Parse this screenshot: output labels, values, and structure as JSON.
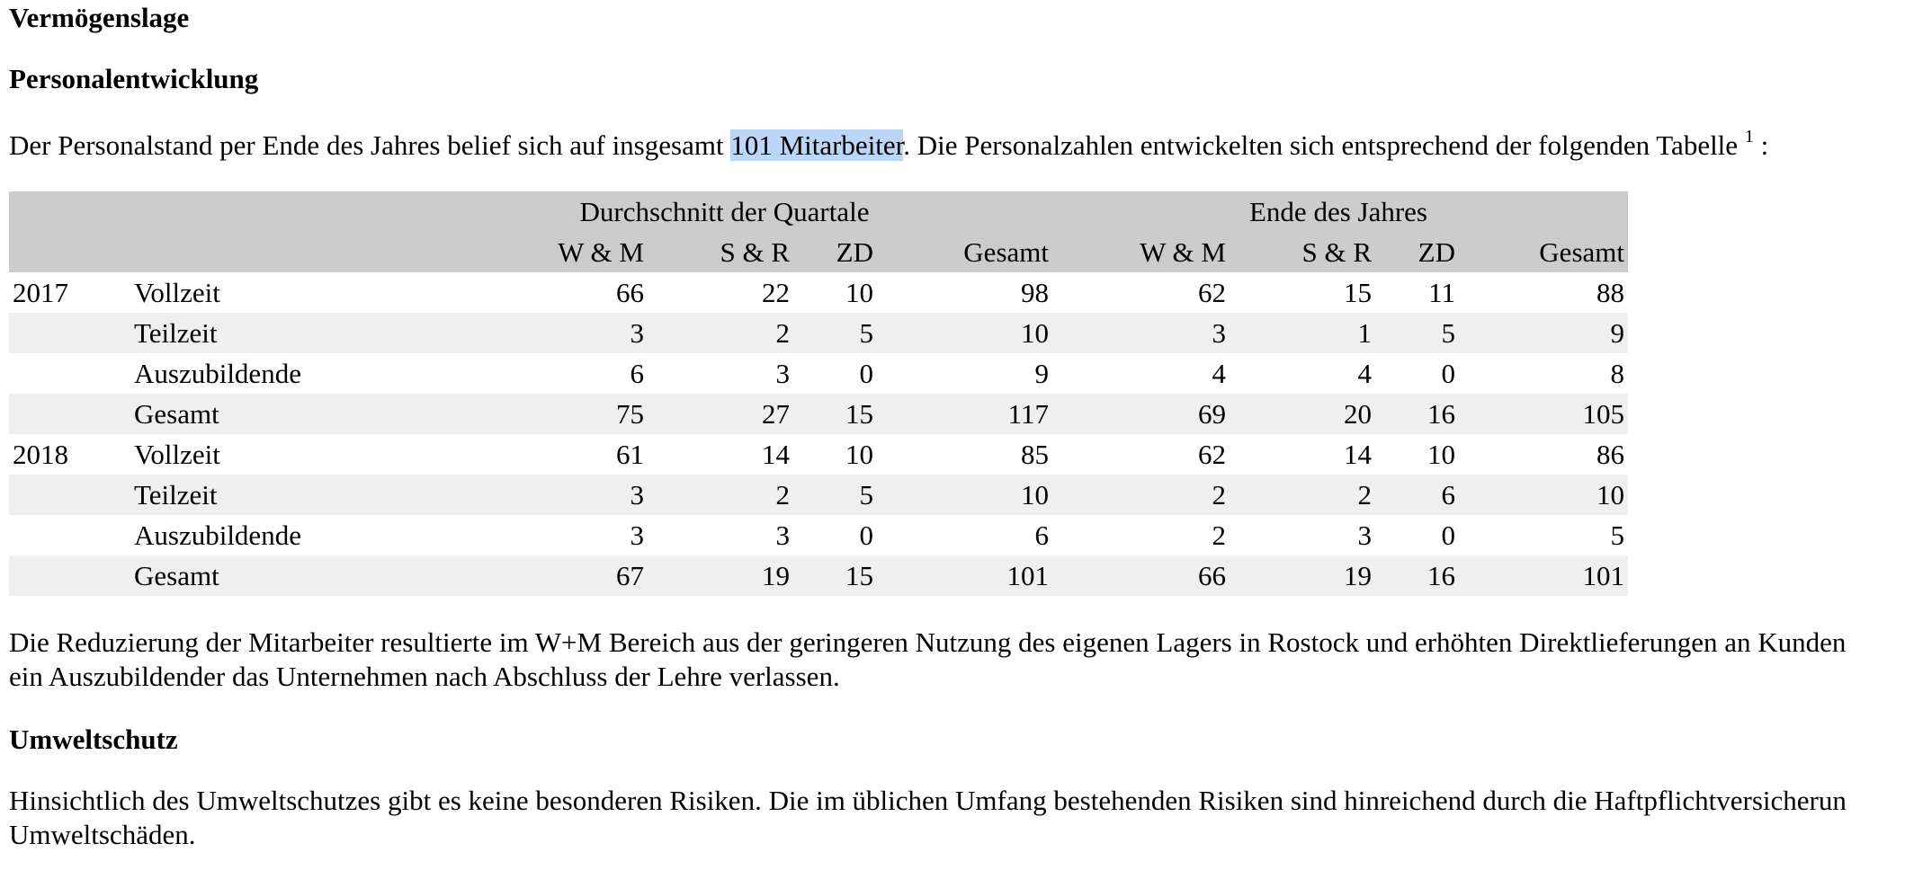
{
  "headings": {
    "vermoegenslage": "Vermögenslage",
    "personal": "Personalentwicklung",
    "umwelt": "Umweltschutz"
  },
  "intro": {
    "before": "Der Personalstand per Ende des Jahres belief sich auf insgesamt ",
    "highlight": "101 Mitarbeiter",
    "after": ". Die Personalzahlen entwickelten sich entsprechend der folgenden Tabelle ",
    "footnote": "1",
    "end": " :",
    "highlight_color": "#bcd6f7"
  },
  "table": {
    "group_headers": [
      "Durchschnitt der Quartale",
      "Ende des Jahres"
    ],
    "columns": [
      "W & M",
      "S & R",
      "ZD",
      "Gesamt",
      "W & M",
      "S & R",
      "ZD",
      "Gesamt"
    ],
    "rows": [
      {
        "year": "2017",
        "label": "Vollzeit",
        "values": [
          "66",
          "22",
          "10",
          "98",
          "62",
          "15",
          "11",
          "88"
        ]
      },
      {
        "year": "",
        "label": "Teilzeit",
        "values": [
          "3",
          "2",
          "5",
          "10",
          "3",
          "1",
          "5",
          "9"
        ]
      },
      {
        "year": "",
        "label": "Auszubildende",
        "values": [
          "6",
          "3",
          "0",
          "9",
          "4",
          "4",
          "0",
          "8"
        ]
      },
      {
        "year": "",
        "label": "Gesamt",
        "values": [
          "75",
          "27",
          "15",
          "117",
          "69",
          "20",
          "16",
          "105"
        ]
      },
      {
        "year": "2018",
        "label": "Vollzeit",
        "values": [
          "61",
          "14",
          "10",
          "85",
          "62",
          "14",
          "10",
          "86"
        ]
      },
      {
        "year": "",
        "label": "Teilzeit",
        "values": [
          "3",
          "2",
          "5",
          "10",
          "2",
          "2",
          "6",
          "10"
        ]
      },
      {
        "year": "",
        "label": "Auszubildende",
        "values": [
          "3",
          "3",
          "0",
          "6",
          "2",
          "3",
          "0",
          "5"
        ]
      },
      {
        "year": "",
        "label": "Gesamt",
        "values": [
          "67",
          "19",
          "15",
          "101",
          "66",
          "19",
          "16",
          "101"
        ]
      }
    ],
    "header_bg": "#cccccc",
    "stripe_bg": "#efefef"
  },
  "reduction_text": {
    "line1": "Die Reduzierung der Mitarbeiter resultierte im W+M Bereich aus der geringeren Nutzung des eigenen Lagers in Rostock und erhöhten Direktlieferungen an Kunden",
    "line2": "ein Auszubildender das Unternehmen nach Abschluss der Lehre verlassen."
  },
  "umwelt_text": {
    "line1": "Hinsichtlich des Umweltschutzes gibt es keine besonderen Risiken. Die im üblichen Umfang bestehenden Risiken sind hinreichend durch die Haftpflichtversicherun",
    "line2": "Umweltschäden."
  }
}
